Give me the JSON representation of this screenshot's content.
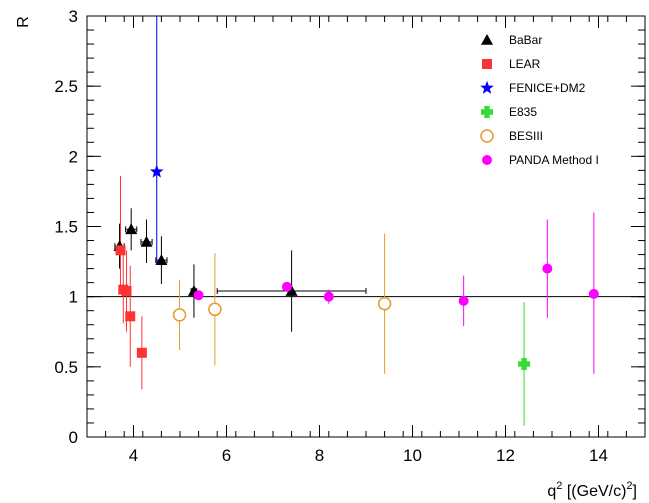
{
  "chart_data": {
    "type": "scatter",
    "title": "",
    "xlabel": "q² [(GeV/c)²]",
    "ylabel": "R",
    "xlim": [
      3,
      15
    ],
    "ylim": [
      0,
      3
    ],
    "x_ticks": [
      4,
      6,
      8,
      10,
      12,
      14
    ],
    "y_ticks": [
      0,
      0.5,
      1,
      1.5,
      2,
      2.5,
      3
    ],
    "x_tick_labels": [
      "4",
      "6",
      "8",
      "10",
      "12",
      "14"
    ],
    "y_tick_labels": [
      "0",
      "0.5",
      "1",
      "1.5",
      "2",
      "2.5",
      "3"
    ],
    "reference_line_y": 1,
    "grid": false,
    "legend_position": "top-right",
    "series": [
      {
        "name": "BaBar",
        "marker": "triangle",
        "color": "#000000",
        "points": [
          {
            "x": 3.7,
            "y": 1.36,
            "yerr_low": 0.16,
            "yerr_high": 0.16,
            "xerr": 0.1
          },
          {
            "x": 3.95,
            "y": 1.48,
            "yerr_low": 0.15,
            "yerr_high": 0.15,
            "xerr": 0.12
          },
          {
            "x": 4.28,
            "y": 1.39,
            "yerr_low": 0.15,
            "yerr_high": 0.16,
            "xerr": 0.12
          },
          {
            "x": 4.6,
            "y": 1.26,
            "yerr_low": 0.17,
            "yerr_high": 0.17,
            "xerr": 0.12
          },
          {
            "x": 5.3,
            "y": 1.04,
            "yerr_low": 0.19,
            "yerr_high": 0.19,
            "xerr": 0.06
          },
          {
            "x": 7.4,
            "y": 1.04,
            "yerr_low": 0.29,
            "yerr_high": 0.29,
            "xerr": 1.6
          }
        ]
      },
      {
        "name": "LEAR",
        "marker": "square",
        "color": "#ff3333",
        "points": [
          {
            "x": 3.72,
            "y": 1.33,
            "yerr_low": 0.25,
            "yerr_high": 0.53
          },
          {
            "x": 3.78,
            "y": 1.05,
            "yerr_low": 0.24,
            "yerr_high": 0.25
          },
          {
            "x": 3.85,
            "y": 1.04,
            "yerr_low": 0.29,
            "yerr_high": 0.29
          },
          {
            "x": 3.93,
            "y": 0.86,
            "yerr_low": 0.36,
            "yerr_high": 0.36
          },
          {
            "x": 4.18,
            "y": 0.6,
            "yerr_low": 0.26,
            "yerr_high": 0.26
          }
        ]
      },
      {
        "name": "FENICE+DM2",
        "marker": "star",
        "color": "#0000ff",
        "points": [
          {
            "x": 4.5,
            "y": 1.89,
            "yerr_low": 0.65,
            "yerr_high": 1.2
          }
        ]
      },
      {
        "name": "E835",
        "marker": "cross",
        "color": "#33dd33",
        "points": [
          {
            "x": 12.4,
            "y": 0.52,
            "yerr_low": 0.44,
            "yerr_high": 0.44
          }
        ]
      },
      {
        "name": "BESIII",
        "marker": "open-circle",
        "color": "#e69a2e",
        "points": [
          {
            "x": 4.99,
            "y": 0.87,
            "yerr_low": 0.25,
            "yerr_high": 0.25
          },
          {
            "x": 5.75,
            "y": 0.91,
            "yerr_low": 0.4,
            "yerr_high": 0.4
          },
          {
            "x": 9.4,
            "y": 0.95,
            "yerr_low": 0.5,
            "yerr_high": 0.5
          }
        ]
      },
      {
        "name": "PANDA Method I",
        "marker": "filled-circle",
        "color": "#ff00ff",
        "points": [
          {
            "x": 5.4,
            "y": 1.01,
            "yerr_low": 0.02,
            "yerr_high": 0.02
          },
          {
            "x": 7.3,
            "y": 1.07,
            "yerr_low": 0.02,
            "yerr_high": 0.02
          },
          {
            "x": 8.2,
            "y": 1.0,
            "yerr_low": 0.05,
            "yerr_high": 0.05
          },
          {
            "x": 11.1,
            "y": 0.97,
            "yerr_low": 0.18,
            "yerr_high": 0.18
          },
          {
            "x": 12.9,
            "y": 1.2,
            "yerr_low": 0.35,
            "yerr_high": 0.35
          },
          {
            "x": 13.9,
            "y": 1.02,
            "yerr_low": 0.57,
            "yerr_high": 0.58
          }
        ]
      }
    ]
  }
}
